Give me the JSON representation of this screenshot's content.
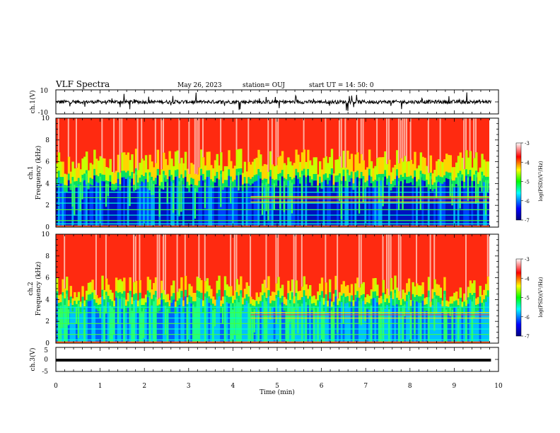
{
  "header": {
    "title": "VLF Spectra",
    "date": "May 26, 2023",
    "station": "station= OUJ",
    "start": "start  UT =   14: 50: 0"
  },
  "chart_data": [
    {
      "type": "line",
      "panel": "ch1-waveform",
      "ylabel": "ch.1(V)",
      "ylim": [
        -10,
        10
      ],
      "yticks": [
        "10",
        "-10"
      ],
      "xlim": [
        0,
        10
      ],
      "trace_level": 0,
      "color": "#000000"
    },
    {
      "type": "heatmap",
      "panel": "ch1-spectrogram",
      "ylabel_line1": "ch.1",
      "ylabel_line2": "Frequency (kHz)",
      "ylim": [
        0,
        10
      ],
      "yticks": [
        "0",
        "2",
        "4",
        "6",
        "8",
        "10"
      ],
      "xlim": [
        0,
        9.83
      ],
      "colorbar": {
        "label": "log(PSD)(V²/Hz)",
        "range": [
          -7,
          -3
        ],
        "ticks": [
          "-3",
          "-4",
          "-5",
          "-6",
          "-7"
        ],
        "colors": [
          "#000080",
          "#0000ff",
          "#00ffff",
          "#00ff00",
          "#ffff00",
          "#ff0000",
          "#ffffff"
        ]
      },
      "band_structure": {
        "background_fill_below_khz": 4.0,
        "transition_khz": [
          4.0,
          6.0
        ],
        "upper_fill_above_khz": 6.0,
        "line_emissions_khz": [
          0.3,
          0.6,
          1.1,
          1.6,
          2.2,
          2.7,
          3.2,
          3.7
        ]
      }
    },
    {
      "type": "heatmap",
      "panel": "ch2-spectrogram",
      "ylabel_line1": "ch.2",
      "ylabel_line2": "Frequency (kHz)",
      "ylim": [
        0,
        10
      ],
      "yticks": [
        "0",
        "2",
        "4",
        "6",
        "8",
        "10"
      ],
      "xlim": [
        0,
        9.83
      ],
      "colorbar": {
        "label": "log(PSD)(V²/Hz)",
        "range": [
          -7,
          -3
        ],
        "ticks": [
          "-3",
          "-4",
          "-5",
          "-6",
          "-7"
        ],
        "colors": [
          "#000080",
          "#0000ff",
          "#00ffff",
          "#00ff00",
          "#ffff00",
          "#ff0000",
          "#ffffff"
        ]
      },
      "band_structure": {
        "background_fill_below_khz": 3.5,
        "transition_khz": [
          3.5,
          5.0
        ],
        "upper_fill_above_khz": 5.0,
        "line_emissions_khz": [
          0.3,
          0.8,
          1.3,
          1.8,
          2.3,
          2.8,
          3.3
        ]
      }
    },
    {
      "type": "line",
      "panel": "ch3-waveform",
      "ylabel": "ch.3(V)",
      "ylim": [
        -5,
        5
      ],
      "yticks": [
        "5",
        "0",
        "-5"
      ],
      "xlim": [
        0,
        10
      ],
      "trace_level": -0.3,
      "color": "#000000",
      "xlabel": "Time (min)",
      "xticks": [
        "0",
        "1",
        "2",
        "3",
        "4",
        "5",
        "6",
        "7",
        "8",
        "9",
        "10"
      ]
    }
  ]
}
